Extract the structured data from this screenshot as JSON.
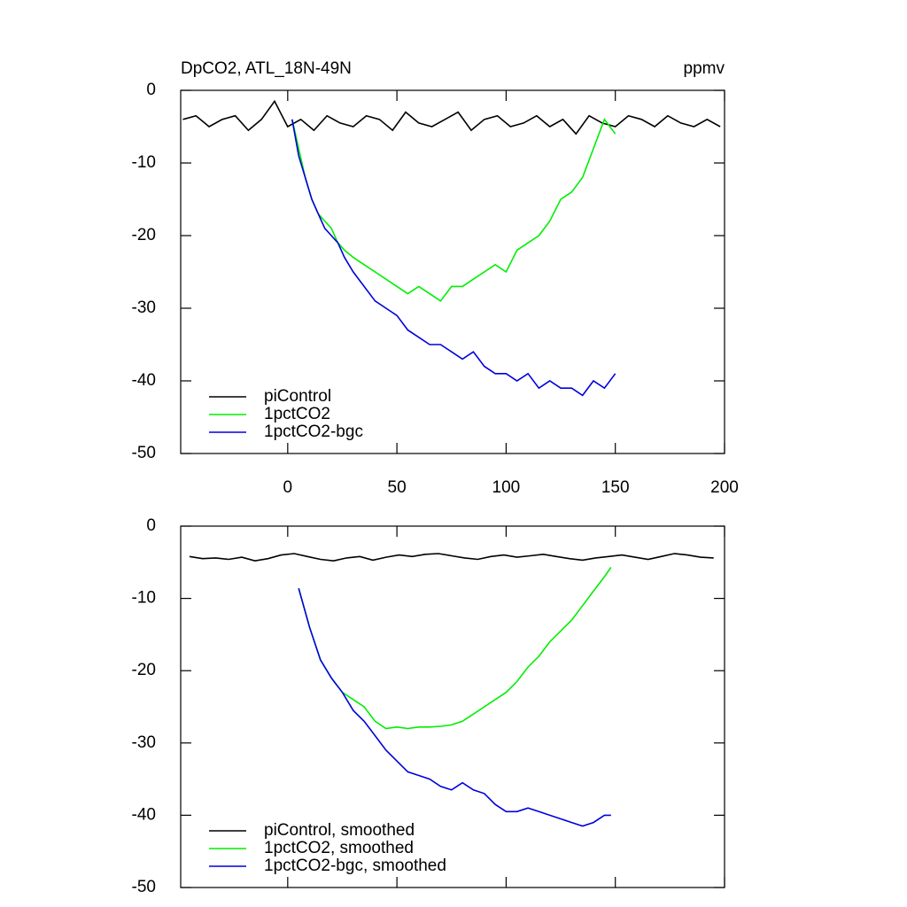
{
  "chart_data": [
    {
      "type": "line",
      "title": "DpCO2, ATL_18N-49N",
      "units": "ppmv",
      "xlim": [
        -49,
        200
      ],
      "ylim": [
        -50,
        0
      ],
      "xticks": [
        0,
        50,
        100,
        150,
        200
      ],
      "yticks": [
        0,
        -10,
        -20,
        -30,
        -40,
        -50
      ],
      "xtick_labels": true,
      "legend": "lower left",
      "series": [
        {
          "name": "piControl",
          "color": "#000000",
          "x": [
            -48,
            -42,
            -36,
            -30,
            -24,
            -18,
            -12,
            -6,
            0,
            6,
            12,
            18,
            24,
            30,
            36,
            42,
            48,
            54,
            60,
            66,
            72,
            78,
            84,
            90,
            96,
            102,
            108,
            114,
            120,
            126,
            132,
            138,
            144,
            150,
            156,
            162,
            168,
            174,
            180,
            186,
            192,
            198
          ],
          "values": [
            -4,
            -3.5,
            -5,
            -4,
            -3.5,
            -5.5,
            -4,
            -1.5,
            -5,
            -4,
            -5.5,
            -3.5,
            -4.5,
            -5,
            -3.5,
            -4,
            -5.5,
            -3,
            -4.5,
            -5,
            -4,
            -3,
            -5.5,
            -4,
            -3.5,
            -5,
            -4.5,
            -3.5,
            -5,
            -4,
            -6,
            -3.5,
            -4.5,
            -5,
            -3.5,
            -4,
            -5,
            -3.5,
            -4.5,
            -5,
            -4,
            -5
          ]
        },
        {
          "name": "1pctCO2",
          "color": "#00ee00",
          "x": [
            2,
            5,
            8,
            11,
            14,
            17,
            20,
            23,
            26,
            30,
            35,
            40,
            45,
            50,
            55,
            60,
            65,
            70,
            75,
            80,
            85,
            90,
            95,
            100,
            105,
            110,
            115,
            120,
            125,
            130,
            135,
            140,
            145,
            150
          ],
          "values": [
            -4,
            -8,
            -12,
            -15,
            -17,
            -18,
            -19,
            -21,
            -22,
            -23,
            -24,
            -25,
            -26,
            -27,
            -28,
            -27,
            -28,
            -29,
            -27,
            -27,
            -26,
            -25,
            -24,
            -25,
            -22,
            -21,
            -20,
            -18,
            -15,
            -14,
            -12,
            -8,
            -4,
            -6
          ]
        },
        {
          "name": "1pctCO2-bgc",
          "color": "#0000dd",
          "x": [
            2,
            5,
            8,
            11,
            14,
            17,
            20,
            23,
            26,
            30,
            35,
            40,
            45,
            50,
            55,
            60,
            65,
            70,
            75,
            80,
            85,
            90,
            95,
            100,
            105,
            110,
            115,
            120,
            125,
            130,
            135,
            140,
            145,
            150
          ],
          "values": [
            -4,
            -9,
            -12,
            -15,
            -17,
            -19,
            -20,
            -21,
            -23,
            -25,
            -27,
            -29,
            -30,
            -31,
            -33,
            -34,
            -35,
            -35,
            -36,
            -37,
            -36,
            -38,
            -39,
            -39,
            -40,
            -39,
            -41,
            -40,
            -41,
            -41,
            -42,
            -40,
            -41,
            -39
          ]
        }
      ]
    },
    {
      "type": "line",
      "xlim": [
        -49,
        200
      ],
      "ylim": [
        -50,
        0
      ],
      "xticks": [
        0,
        50,
        100,
        150,
        200
      ],
      "yticks": [
        0,
        -10,
        -20,
        -30,
        -40,
        -50
      ],
      "xtick_labels": false,
      "legend": "lower left",
      "series": [
        {
          "name": "piControl, smoothed",
          "color": "#000000",
          "x": [
            -45,
            -39,
            -33,
            -27,
            -21,
            -15,
            -9,
            -3,
            3,
            9,
            15,
            21,
            27,
            33,
            39,
            45,
            51,
            57,
            63,
            69,
            75,
            81,
            87,
            93,
            99,
            105,
            111,
            117,
            123,
            129,
            135,
            141,
            147,
            153,
            159,
            165,
            171,
            177,
            183,
            189,
            195
          ],
          "values": [
            -4.2,
            -4.5,
            -4.4,
            -4.6,
            -4.3,
            -4.8,
            -4.5,
            -4,
            -3.8,
            -4.2,
            -4.6,
            -4.8,
            -4.4,
            -4.2,
            -4.7,
            -4.3,
            -4,
            -4.2,
            -3.9,
            -3.8,
            -4.1,
            -4.4,
            -4.6,
            -4.2,
            -4,
            -4.3,
            -4.1,
            -3.9,
            -4.2,
            -4.5,
            -4.7,
            -4.4,
            -4.2,
            -4,
            -4.3,
            -4.6,
            -4.2,
            -3.8,
            -4,
            -4.3,
            -4.4
          ]
        },
        {
          "name": "1pctCO2, smoothed",
          "color": "#00ee00",
          "x": [
            5,
            10,
            15,
            20,
            25,
            30,
            35,
            40,
            45,
            50,
            55,
            60,
            65,
            70,
            75,
            80,
            85,
            90,
            95,
            100,
            105,
            110,
            115,
            120,
            125,
            130,
            135,
            140,
            145,
            148
          ],
          "values": [
            -8.6,
            -14,
            -18.5,
            -21,
            -23,
            -24,
            -25,
            -27,
            -28,
            -27.8,
            -28,
            -27.8,
            -27.8,
            -27.7,
            -27.5,
            -27,
            -26,
            -25,
            -24,
            -23,
            -21.5,
            -19.5,
            -18,
            -16,
            -14.5,
            -13,
            -11,
            -9,
            -7,
            -5.7
          ]
        },
        {
          "name": "1pctCO2-bgc, smoothed",
          "color": "#0000dd",
          "x": [
            5,
            10,
            15,
            20,
            25,
            30,
            35,
            40,
            45,
            50,
            55,
            60,
            65,
            70,
            75,
            80,
            85,
            90,
            95,
            100,
            105,
            110,
            115,
            120,
            125,
            130,
            135,
            140,
            145,
            148
          ],
          "values": [
            -8.6,
            -14,
            -18.5,
            -21,
            -23,
            -25.5,
            -27,
            -29,
            -31,
            -32.5,
            -34,
            -34.5,
            -35,
            -36,
            -36.5,
            -35.5,
            -36.5,
            -37,
            -38.5,
            -39.5,
            -39.5,
            -39,
            -39.5,
            -40,
            -40.5,
            -41,
            -41.5,
            -41,
            -40,
            -40
          ]
        }
      ]
    }
  ]
}
